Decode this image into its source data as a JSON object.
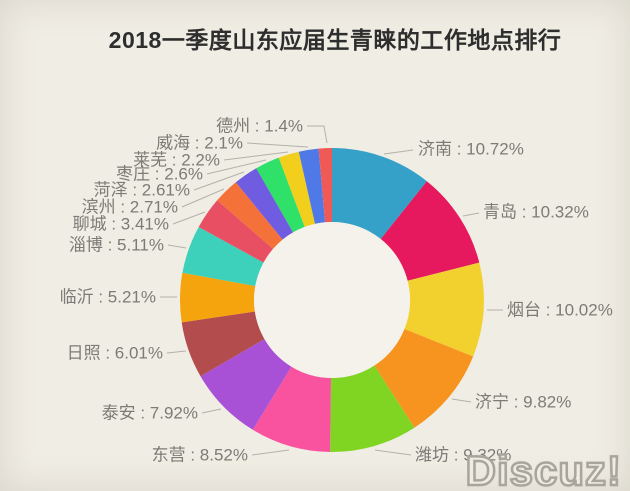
{
  "page": {
    "background_color": "#f0ede4",
    "title": "2018一季度山东应届生青睐的工作地点排行",
    "title_color": "#2e2e2e",
    "watermark": "Discuz!"
  },
  "chart_data": {
    "type": "pie",
    "variant": "donut",
    "title": "2018一季度山东应届生青睐的工作地点排行",
    "unit": "%",
    "order": "clockwise from 12 o'clock, descending by value",
    "label_style": "callout labels with leader lines",
    "label_format": "{name} : {value}%",
    "total": 100,
    "hole_color": "#f4f2ea",
    "label_text_color": "#7c7b76",
    "leader_line_color": "#b3b1a9",
    "segments": [
      {
        "name": "济南",
        "value": 10.72,
        "color": "#35a1c8"
      },
      {
        "name": "青岛",
        "value": 10.32,
        "color": "#e6195e"
      },
      {
        "name": "烟台",
        "value": 10.02,
        "color": "#f2d12e"
      },
      {
        "name": "济宁",
        "value": 9.82,
        "color": "#f79420"
      },
      {
        "name": "潍坊",
        "value": 9.32,
        "color": "#80d522"
      },
      {
        "name": "东营",
        "value": 8.52,
        "color": "#f9539f"
      },
      {
        "name": "泰安",
        "value": 7.92,
        "color": "#a951d6"
      },
      {
        "name": "日照",
        "value": 6.01,
        "color": "#b24c4d"
      },
      {
        "name": "临沂",
        "value": 5.21,
        "color": "#f6a40d"
      },
      {
        "name": "淄博",
        "value": 5.11,
        "color": "#3dd0bb"
      },
      {
        "name": "聊城",
        "value": 3.41,
        "color": "#e94f62"
      },
      {
        "name": "滨州",
        "value": 2.71,
        "color": "#f4713a"
      },
      {
        "name": "菏泽",
        "value": 2.61,
        "color": "#6f5ce0"
      },
      {
        "name": "枣庄",
        "value": 2.6,
        "color": "#2fe069"
      },
      {
        "name": "莱芜",
        "value": 2.2,
        "color": "#f2cf1d"
      },
      {
        "name": "威海",
        "value": 2.1,
        "color": "#4e79e6"
      },
      {
        "name": "德州",
        "value": 1.4,
        "color": "#ef5a57"
      }
    ]
  }
}
